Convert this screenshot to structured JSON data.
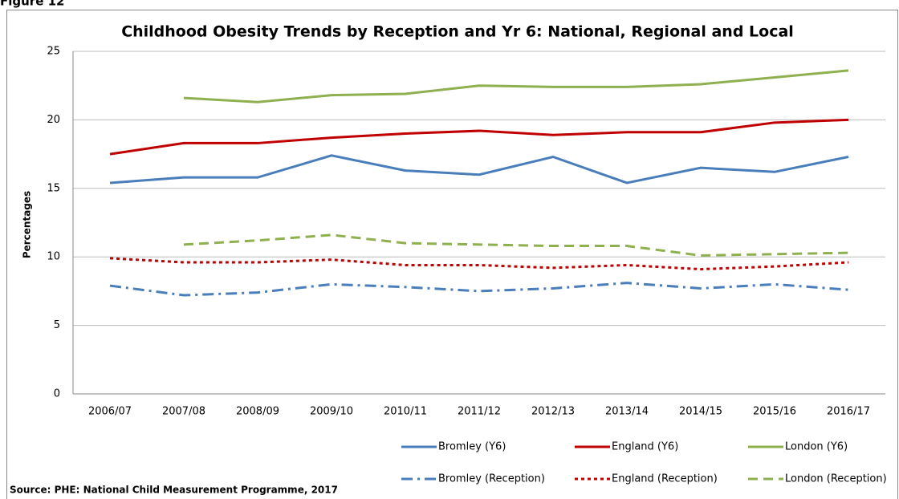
{
  "figure_label": "Figure 12",
  "source": "Source: PHE: National Child Measurement Programme, 2017",
  "chart_data": {
    "type": "line",
    "title": "Childhood Obesity Trends by Reception and Yr 6: National, Regional and Local",
    "y_label": "Percentages",
    "categories": [
      "2006/07",
      "2007/08",
      "2008/09",
      "2009/10",
      "2010/11",
      "2011/12",
      "2012/13",
      "2013/14",
      "2014/15",
      "2015/16",
      "2016/17"
    ],
    "ylim": [
      0,
      25
    ],
    "yticks": [
      0,
      5,
      10,
      15,
      20,
      25
    ],
    "grid": true,
    "legend": "bottom",
    "series": [
      {
        "name": "Bromley (Y6)",
        "color": "#4a7ebb",
        "dash": "solid",
        "values": [
          15.4,
          15.8,
          15.8,
          17.4,
          16.3,
          16.0,
          17.3,
          15.4,
          16.5,
          16.2,
          17.3
        ]
      },
      {
        "name": "England (Y6)",
        "color": "#c00000",
        "dash": "solid",
        "values": [
          17.5,
          18.3,
          18.3,
          18.7,
          19.0,
          19.2,
          18.9,
          19.1,
          19.1,
          19.8,
          20.0
        ]
      },
      {
        "name": "London (Y6)",
        "color": "#8fb04f",
        "dash": "solid",
        "values": [
          null,
          21.6,
          21.3,
          21.8,
          21.9,
          22.5,
          22.4,
          22.4,
          22.6,
          23.1,
          23.6
        ]
      },
      {
        "name": "Bromley (Reception)",
        "color": "#4a7ebb",
        "dash": "dashdot",
        "values": [
          7.9,
          7.2,
          7.4,
          8.0,
          7.8,
          7.5,
          7.7,
          8.1,
          7.7,
          8.0,
          7.6
        ]
      },
      {
        "name": "England (Reception)",
        "color": "#c00000",
        "dash": "dot",
        "values": [
          9.9,
          9.6,
          9.6,
          9.8,
          9.4,
          9.4,
          9.2,
          9.4,
          9.1,
          9.3,
          9.6
        ]
      },
      {
        "name": "London (Reception)",
        "color": "#8fb04f",
        "dash": "dash",
        "values": [
          null,
          10.9,
          11.2,
          11.6,
          11.0,
          10.9,
          10.8,
          10.8,
          10.1,
          10.2,
          10.3
        ]
      }
    ]
  }
}
